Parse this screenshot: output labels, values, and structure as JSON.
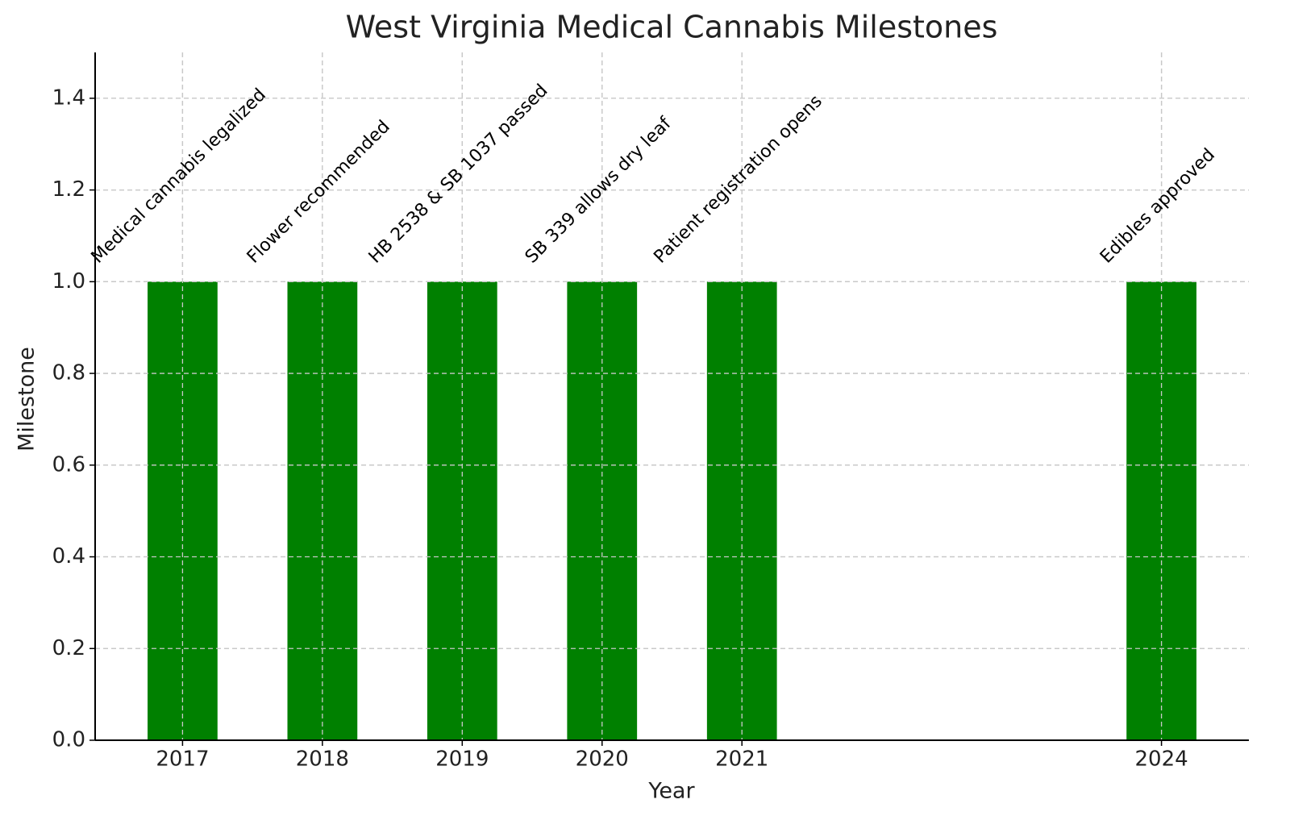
{
  "chart_data": {
    "type": "bar",
    "title": "West Virginia Medical Cannabis Milestones",
    "x_label": "Year",
    "y_label": "Milestone",
    "x": [
      2017,
      2018,
      2019,
      2020,
      2021,
      2024
    ],
    "values": [
      1,
      1,
      1,
      1,
      1,
      1
    ],
    "annotations": [
      "Medical cannabis legalized",
      "Flower recommended",
      "HB 2538 & SB 1037 passed",
      "SB 339 allows dry leaf",
      "Patient registration opens",
      "Edibles approved"
    ],
    "color": "#008000",
    "xlim": [
      2016.375,
      2024.625
    ],
    "xticks": [
      2017,
      2018,
      2019,
      2020,
      2021,
      2024
    ],
    "ylim": [
      0,
      1.5
    ],
    "yticks": [
      {
        "value": 0,
        "label": "0.0"
      },
      0.2,
      0.4,
      0.6,
      0.8,
      {
        "value": 1,
        "label": "1.0"
      },
      1.2,
      1.4
    ],
    "grid": true
  }
}
